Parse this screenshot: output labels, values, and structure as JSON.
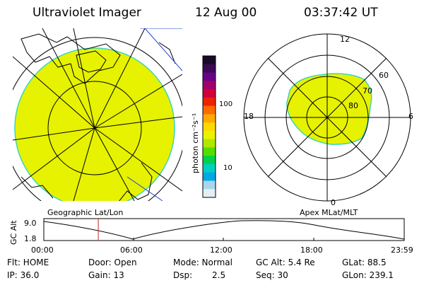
{
  "header": {
    "instrument": "Ultraviolet Imager",
    "date": "12 Aug 00",
    "time": "03:37:42 UT"
  },
  "colors": {
    "auroral_fill": "#e6f200",
    "auroral_edge": "#3bd6b8",
    "timeline_marker": "#cc2222"
  },
  "geo_panel": {
    "label": "Geographic Lat/Lon"
  },
  "mag_panel": {
    "label": "Apex MLat/MLT",
    "mlt_labels": [
      "12",
      "18",
      "6",
      "0"
    ],
    "lat_labels": [
      "60",
      "70",
      "80"
    ]
  },
  "colorbar": {
    "unit": "photon cm⁻²s⁻¹",
    "ticks": [
      "100",
      "10"
    ],
    "colors": [
      "#1a0a28",
      "#3a0a55",
      "#6a0088",
      "#a0006a",
      "#d0003a",
      "#ee2200",
      "#ff6a00",
      "#ffaa00",
      "#ffd800",
      "#eaf200",
      "#aee800",
      "#55dd00",
      "#00d24a",
      "#00d0c0",
      "#00a8e6",
      "#a8d6ee",
      "#e6eef4"
    ]
  },
  "timeline": {
    "ylabel": "GC Alt",
    "yticks": [
      "9.0",
      "1.8"
    ],
    "xticks": [
      "00:00",
      "06:00",
      "12:00",
      "18:00",
      "23:59"
    ],
    "marker_time_hours": 3.63
  },
  "info": {
    "flt": "Flt: HOME",
    "ip": "IP: 36.0",
    "door": "Door: Open",
    "gain": "Gain: 13",
    "mode": "Mode: Normal",
    "dsp_label": "Dsp:",
    "dsp_value": "2.5",
    "gc_alt": "GC Alt: 5.4 Re",
    "seq": "Seq: 30",
    "glat": "GLat:  88.5",
    "glon": "GLon: 239.1"
  }
}
